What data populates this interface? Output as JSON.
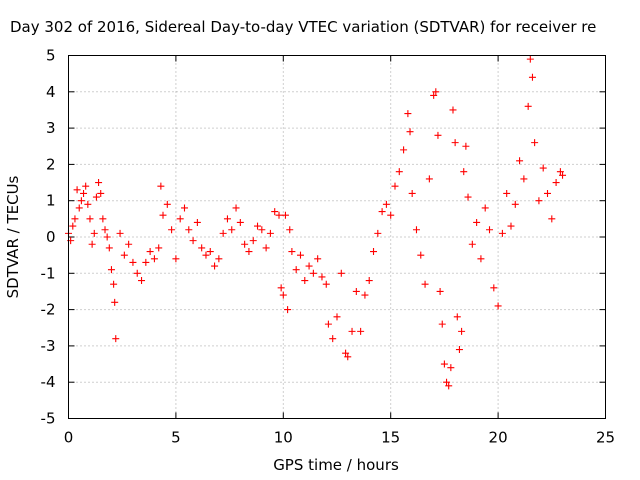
{
  "chart_data": {
    "type": "scatter",
    "title": "Day 302 of 2016, Sidereal Day-to-day VTEC variation (SDTVAR) for receiver re",
    "xlabel": "GPS time / hours",
    "ylabel": "SDTVAR / TECUs",
    "xlim": [
      0,
      25
    ],
    "ylim": [
      -5,
      5
    ],
    "xticks": [
      "0",
      "5",
      "10",
      "15",
      "20",
      "25"
    ],
    "yticks": [
      "5",
      "4",
      "3",
      "2",
      "1",
      "0",
      "-1",
      "-2",
      "-3",
      "-4",
      "-5"
    ],
    "grid": true,
    "marker": "+",
    "color": "#ff0000",
    "series": [
      {
        "name": "SDTVAR",
        "points": [
          [
            0.0,
            0.1
          ],
          [
            0.1,
            -0.1
          ],
          [
            0.2,
            0.3
          ],
          [
            0.3,
            0.5
          ],
          [
            0.4,
            1.3
          ],
          [
            0.5,
            0.8
          ],
          [
            0.6,
            1.0
          ],
          [
            0.7,
            1.2
          ],
          [
            0.8,
            1.4
          ],
          [
            0.9,
            0.9
          ],
          [
            1.0,
            0.5
          ],
          [
            1.1,
            -0.2
          ],
          [
            1.2,
            0.1
          ],
          [
            1.3,
            1.1
          ],
          [
            1.4,
            1.5
          ],
          [
            1.5,
            1.2
          ],
          [
            1.6,
            0.5
          ],
          [
            1.7,
            0.2
          ],
          [
            1.8,
            0.0
          ],
          [
            1.9,
            -0.3
          ],
          [
            2.0,
            -0.9
          ],
          [
            2.1,
            -1.3
          ],
          [
            2.15,
            -1.8
          ],
          [
            2.2,
            -2.8
          ],
          [
            2.4,
            0.1
          ],
          [
            2.6,
            -0.5
          ],
          [
            2.8,
            -0.2
          ],
          [
            3.0,
            -0.7
          ],
          [
            3.2,
            -1.0
          ],
          [
            3.4,
            -1.2
          ],
          [
            3.6,
            -0.7
          ],
          [
            3.8,
            -0.4
          ],
          [
            4.0,
            -0.6
          ],
          [
            4.2,
            -0.3
          ],
          [
            4.3,
            1.4
          ],
          [
            4.4,
            0.6
          ],
          [
            4.6,
            0.9
          ],
          [
            4.8,
            0.2
          ],
          [
            5.0,
            -0.6
          ],
          [
            5.2,
            0.5
          ],
          [
            5.4,
            0.8
          ],
          [
            5.6,
            0.2
          ],
          [
            5.8,
            -0.1
          ],
          [
            6.0,
            0.4
          ],
          [
            6.2,
            -0.3
          ],
          [
            6.4,
            -0.5
          ],
          [
            6.6,
            -0.4
          ],
          [
            6.8,
            -0.8
          ],
          [
            7.0,
            -0.6
          ],
          [
            7.2,
            0.1
          ],
          [
            7.4,
            0.5
          ],
          [
            7.6,
            0.2
          ],
          [
            7.8,
            0.8
          ],
          [
            8.0,
            0.4
          ],
          [
            8.2,
            -0.2
          ],
          [
            8.4,
            -0.4
          ],
          [
            8.6,
            -0.1
          ],
          [
            8.8,
            0.3
          ],
          [
            9.0,
            0.2
          ],
          [
            9.2,
            -0.3
          ],
          [
            9.4,
            0.1
          ],
          [
            9.6,
            0.7
          ],
          [
            9.8,
            0.6
          ],
          [
            9.9,
            -1.4
          ],
          [
            10.0,
            -1.6
          ],
          [
            10.1,
            0.6
          ],
          [
            10.2,
            -2.0
          ],
          [
            10.3,
            0.2
          ],
          [
            10.4,
            -0.4
          ],
          [
            10.6,
            -0.9
          ],
          [
            10.8,
            -0.5
          ],
          [
            11.0,
            -1.2
          ],
          [
            11.2,
            -0.8
          ],
          [
            11.4,
            -1.0
          ],
          [
            11.6,
            -0.6
          ],
          [
            11.8,
            -1.1
          ],
          [
            12.0,
            -1.3
          ],
          [
            12.1,
            -2.4
          ],
          [
            12.3,
            -2.8
          ],
          [
            12.5,
            -2.2
          ],
          [
            12.7,
            -1.0
          ],
          [
            12.9,
            -3.2
          ],
          [
            13.0,
            -3.3
          ],
          [
            13.2,
            -2.6
          ],
          [
            13.4,
            -1.5
          ],
          [
            13.6,
            -2.6
          ],
          [
            13.8,
            -1.6
          ],
          [
            14.0,
            -1.2
          ],
          [
            14.2,
            -0.4
          ],
          [
            14.4,
            0.1
          ],
          [
            14.6,
            0.7
          ],
          [
            14.8,
            0.9
          ],
          [
            15.0,
            0.6
          ],
          [
            15.2,
            1.4
          ],
          [
            15.4,
            1.8
          ],
          [
            15.6,
            2.4
          ],
          [
            15.8,
            3.4
          ],
          [
            15.9,
            2.9
          ],
          [
            16.0,
            1.2
          ],
          [
            16.2,
            0.2
          ],
          [
            16.4,
            -0.5
          ],
          [
            16.6,
            -1.3
          ],
          [
            16.8,
            1.6
          ],
          [
            17.0,
            3.9
          ],
          [
            17.1,
            4.0
          ],
          [
            17.2,
            2.8
          ],
          [
            17.3,
            -1.5
          ],
          [
            17.4,
            -2.4
          ],
          [
            17.5,
            -3.5
          ],
          [
            17.6,
            -4.0
          ],
          [
            17.7,
            -4.1
          ],
          [
            17.8,
            -3.6
          ],
          [
            17.9,
            3.5
          ],
          [
            18.0,
            2.6
          ],
          [
            18.1,
            -2.2
          ],
          [
            18.2,
            -3.1
          ],
          [
            18.3,
            -2.6
          ],
          [
            18.4,
            1.8
          ],
          [
            18.5,
            2.5
          ],
          [
            18.6,
            1.1
          ],
          [
            18.8,
            -0.2
          ],
          [
            19.0,
            0.4
          ],
          [
            19.2,
            -0.6
          ],
          [
            19.4,
            0.8
          ],
          [
            19.6,
            0.2
          ],
          [
            19.8,
            -1.4
          ],
          [
            20.0,
            -1.9
          ],
          [
            20.2,
            0.1
          ],
          [
            20.4,
            1.2
          ],
          [
            20.6,
            0.3
          ],
          [
            20.8,
            0.9
          ],
          [
            21.0,
            2.1
          ],
          [
            21.2,
            1.6
          ],
          [
            21.4,
            3.6
          ],
          [
            21.5,
            4.9
          ],
          [
            21.6,
            4.4
          ],
          [
            21.7,
            2.6
          ],
          [
            21.9,
            1.0
          ],
          [
            22.1,
            1.9
          ],
          [
            22.3,
            1.2
          ],
          [
            22.5,
            0.5
          ],
          [
            22.7,
            1.5
          ],
          [
            22.9,
            1.8
          ],
          [
            23.0,
            1.7
          ]
        ]
      }
    ]
  }
}
